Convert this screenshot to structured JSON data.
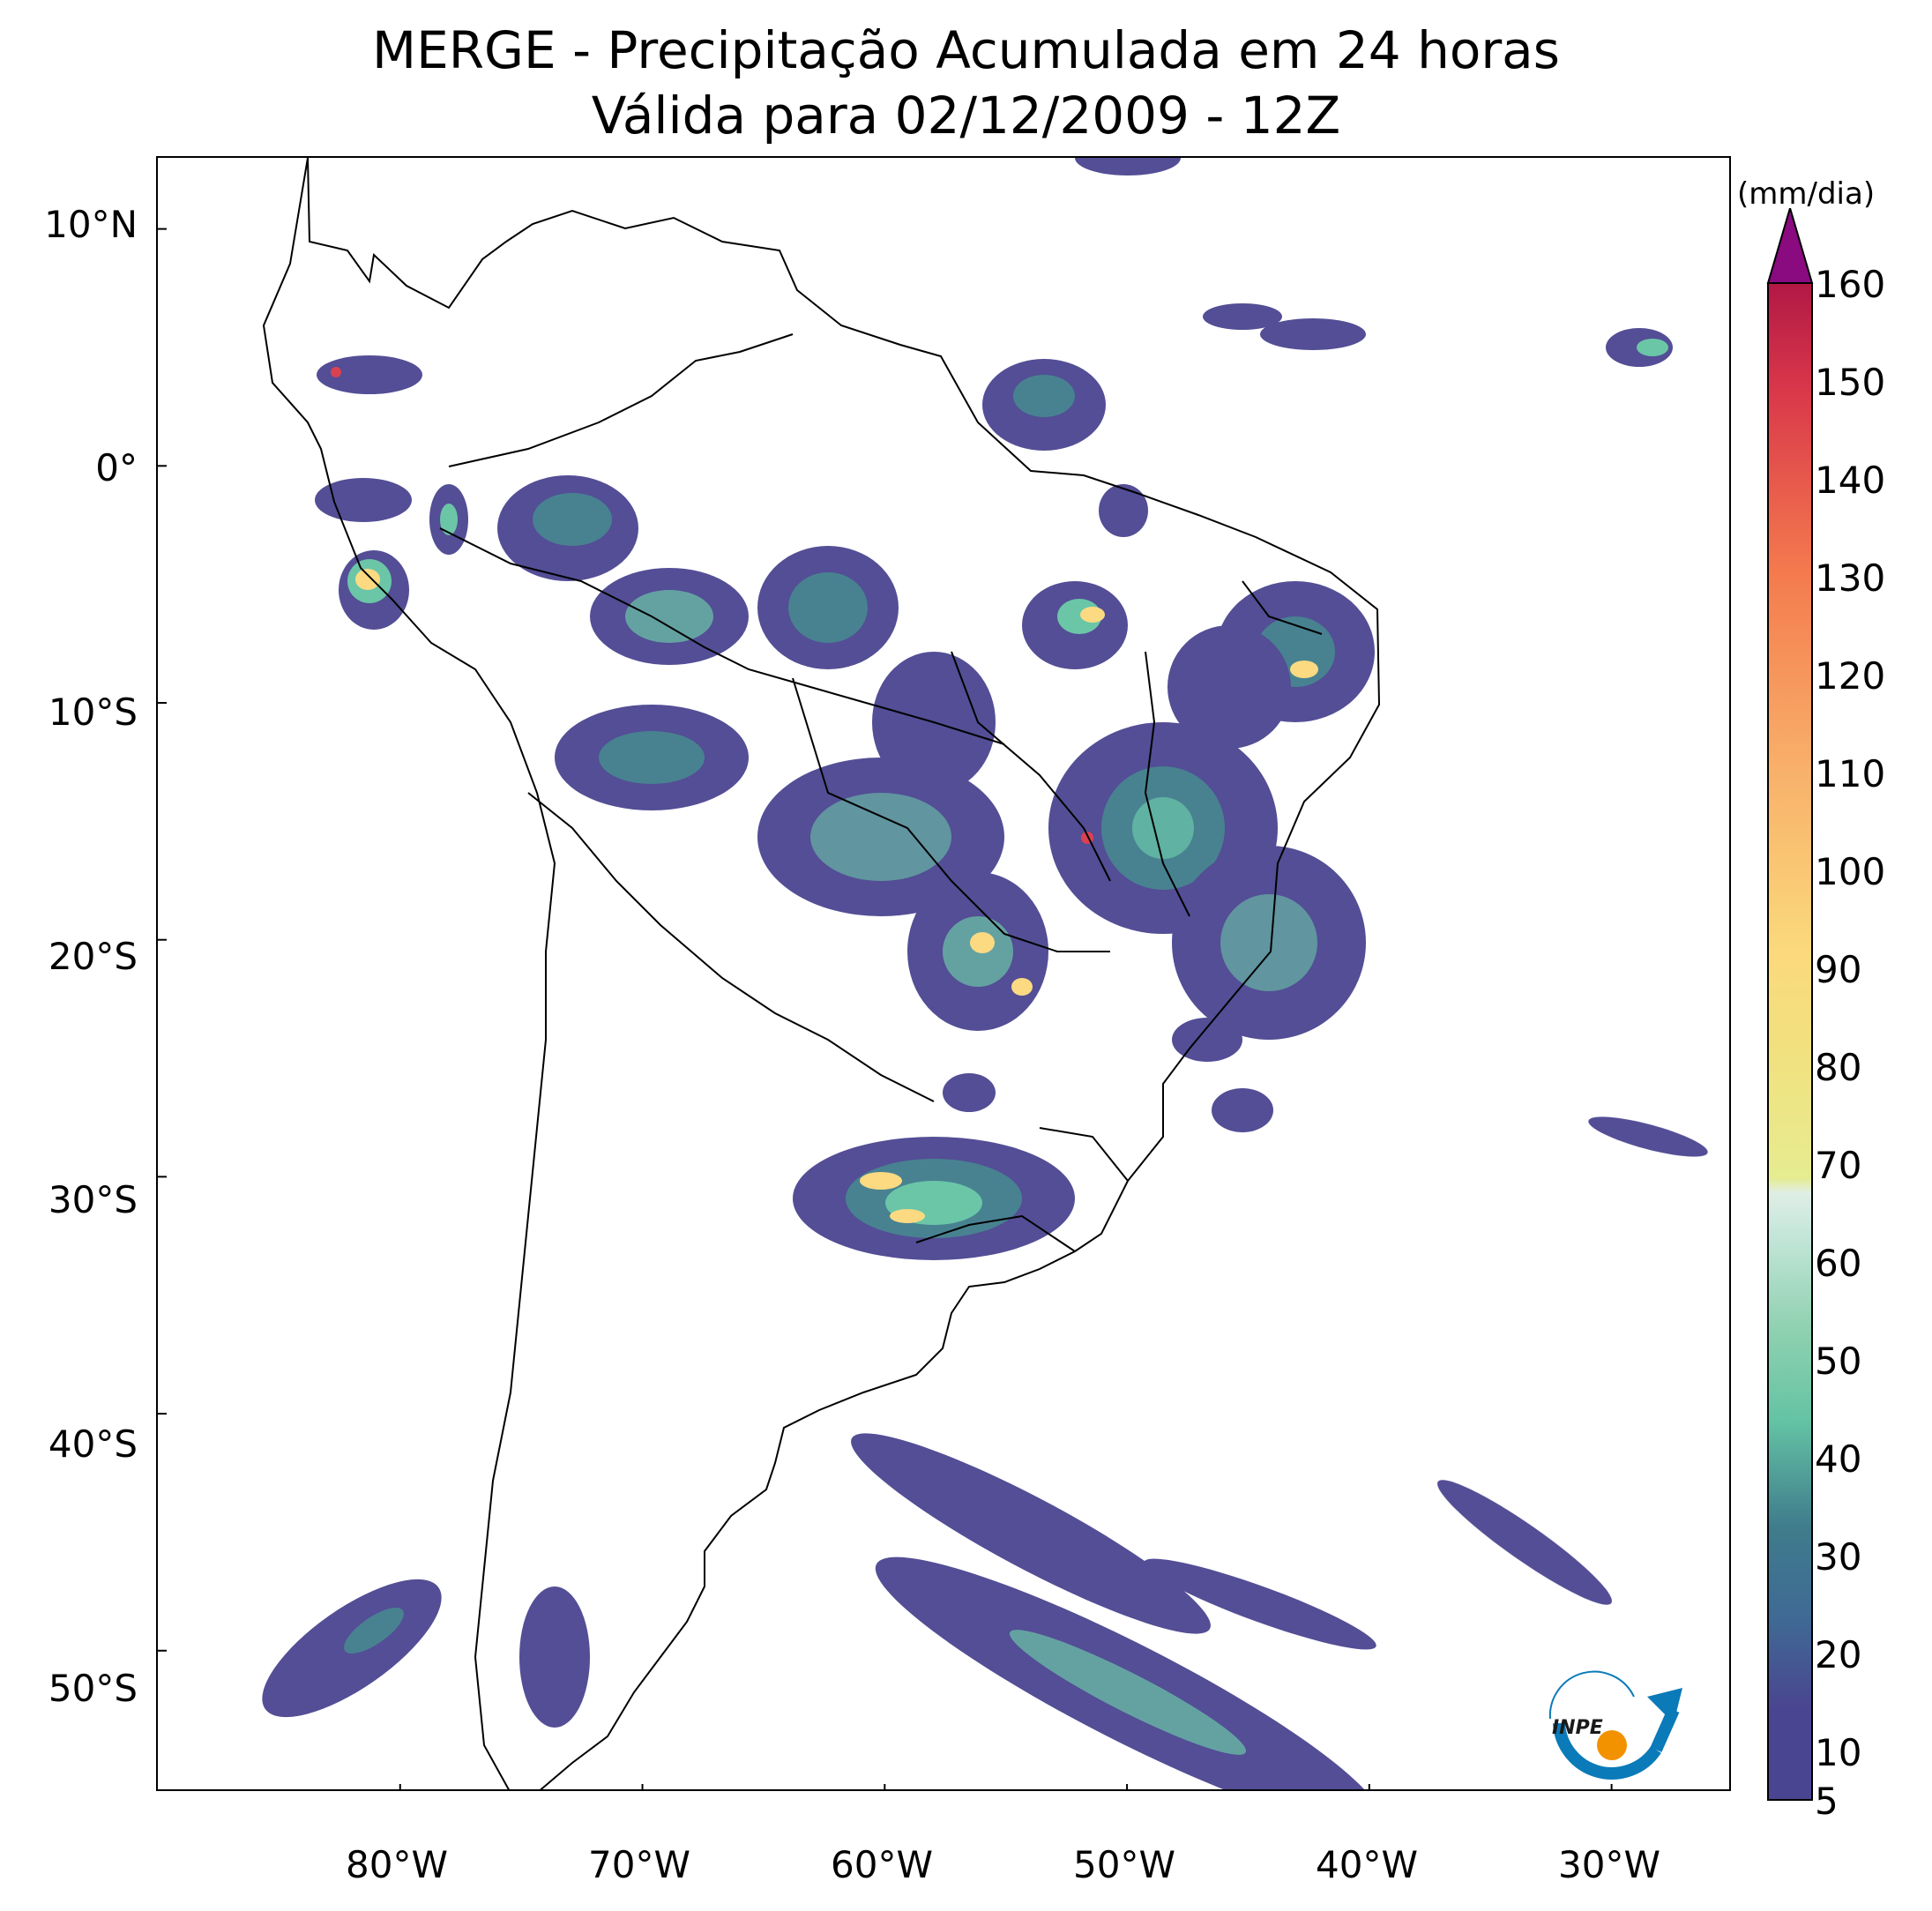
{
  "title": {
    "line1": "MERGE - Precipitação Acumulada em 24 horas",
    "line2": "Válida para 02/12/2009 - 12Z"
  },
  "map": {
    "lat_labels": [
      "10°N",
      "0°",
      "10°S",
      "20°S",
      "30°S",
      "40°S",
      "50°S"
    ],
    "lon_labels": [
      "80°W",
      "70°W",
      "60°W",
      "50°W",
      "40°W",
      "30°W"
    ],
    "lat_values": [
      10,
      0,
      -10,
      -20,
      -30,
      -40,
      -50
    ],
    "lon_values": [
      -80,
      -70,
      -60,
      -50,
      -40,
      -30
    ],
    "extent": {
      "lon_min": -90,
      "lon_max": -25,
      "lat_min": -56,
      "lat_max": 13
    }
  },
  "colorbar": {
    "units": "(mm/dia)",
    "tick_labels": [
      "5",
      "10",
      "20",
      "30",
      "40",
      "50",
      "60",
      "70",
      "80",
      "90",
      "100",
      "110",
      "120",
      "130",
      "140",
      "150",
      "160"
    ],
    "levels": [
      5,
      10,
      20,
      30,
      40,
      50,
      60,
      70,
      80,
      90,
      100,
      110,
      120,
      130,
      140,
      150,
      160
    ],
    "extend": "max",
    "colors": {
      "low": "#4a4590",
      "mid_low": "#3f7c8c",
      "teal": "#64c3a4",
      "pale": "#dfeee6",
      "yellow_green": "#e6ec90",
      "yellow": "#fbd97c",
      "orange": "#f79a56",
      "red": "#d9374a",
      "top": "#8a0a80"
    }
  },
  "logo": {
    "text": "INPE"
  }
}
